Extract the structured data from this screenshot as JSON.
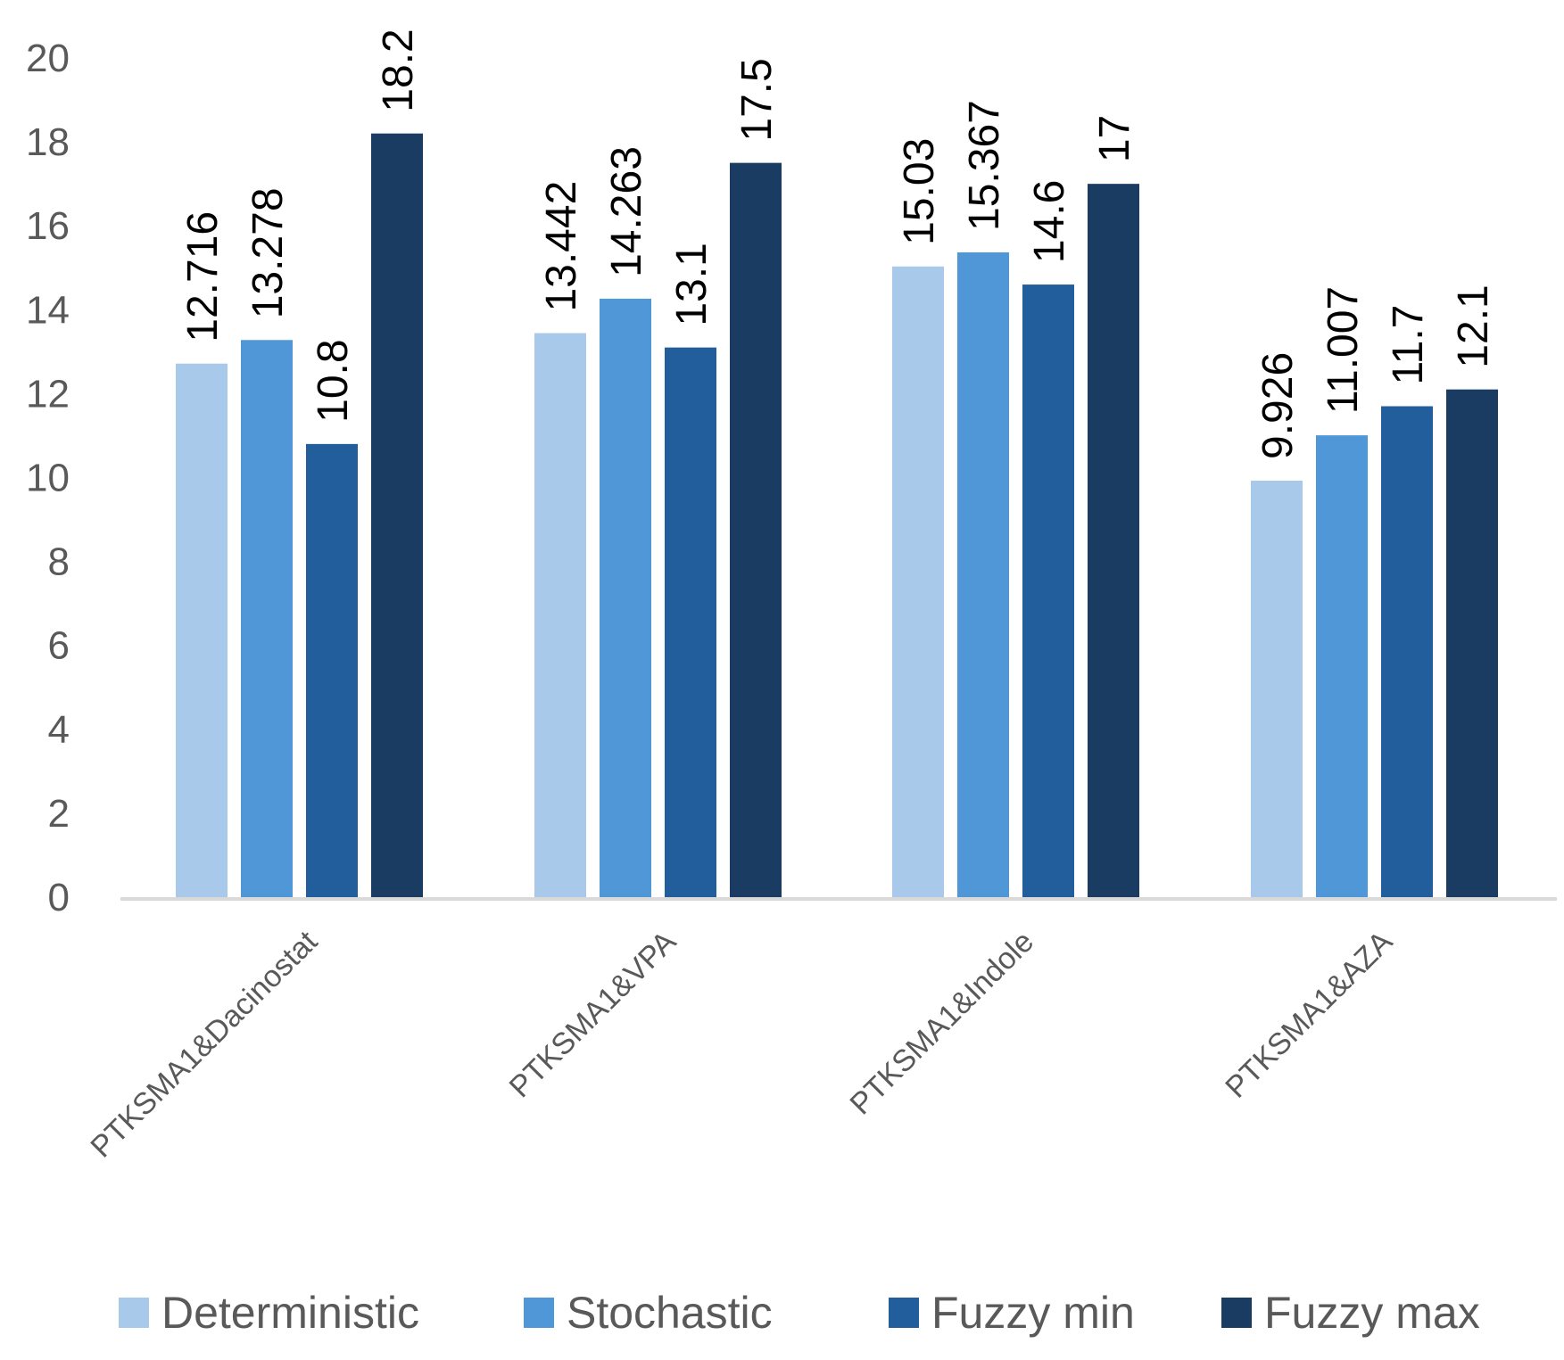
{
  "chart_data": {
    "type": "bar",
    "title": "",
    "xlabel": "",
    "ylabel": "",
    "ylim": [
      0,
      20
    ],
    "yticks": [
      0,
      2,
      4,
      6,
      8,
      10,
      12,
      14,
      16,
      18,
      20
    ],
    "grid": false,
    "legend_position": "bottom",
    "categories": [
      "PTKSMA1&Dacinostat",
      "PTKSMA1&VPA",
      "PTKSMA1&Indole",
      "PTKSMA1&AZA"
    ],
    "series": [
      {
        "name": "Deterministic",
        "color": "#a9c9ea",
        "values": [
          12.716,
          13.442,
          15.03,
          9.926
        ],
        "labels": [
          "12.716",
          "13.442",
          "15.03",
          "9.926"
        ]
      },
      {
        "name": "Stochastic",
        "color": "#5097d8",
        "values": [
          13.278,
          14.263,
          15.367,
          11.007
        ],
        "labels": [
          "13.278",
          "14.263",
          "15.367",
          "11.007"
        ]
      },
      {
        "name": "Fuzzy min",
        "color": "#215e9b",
        "values": [
          10.8,
          13.1,
          14.6,
          11.7
        ],
        "labels": [
          "10.8",
          "13.1",
          "14.6",
          "11.7"
        ]
      },
      {
        "name": "Fuzzy max",
        "color": "#1b3c62",
        "values": [
          18.2,
          17.5,
          17,
          12.1
        ],
        "labels": [
          "18.2",
          "17.5",
          "17",
          "12.1"
        ]
      }
    ]
  }
}
